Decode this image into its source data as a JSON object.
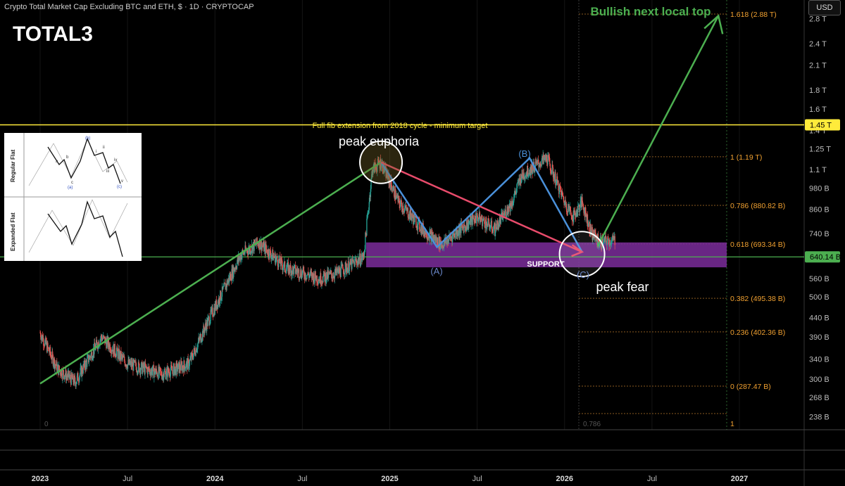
{
  "header": {
    "title": "Crypto Total Market Cap Excluding BTC and ETH, $ · 1D · CRYPTOCAP",
    "ticker": "TOTAL3",
    "currency_button": "USD"
  },
  "colors": {
    "up": "#26a69a",
    "down": "#ef5350",
    "green_line": "#4caf50",
    "yellow_line": "#ffeb3b",
    "abc_line": "#4a90d9",
    "red_arrow": "#e84b6b",
    "support_box": "#7b2d9b",
    "fib_text": "#f0a030"
  },
  "inset": {
    "labels": [
      "Regular Flat",
      "Expanded Flat"
    ],
    "wave_labels": [
      "(b)",
      "a",
      "b",
      "c",
      "(a)",
      "(c)",
      "i",
      "ii",
      "iii",
      "iv",
      "v"
    ]
  },
  "annotations": {
    "bullish": "Bullish next local top",
    "euphoria": "peak euphoria",
    "fear": "peak fear",
    "support": "SUPPORT",
    "fib_note": "Full fib extension from 2018 cycle - minimum target",
    "wave_a": "(A)",
    "wave_b": "(B)",
    "wave_c": "(C)",
    "zero_label": "0",
    "fib_small": "0.786"
  },
  "chart_data": {
    "type": "line",
    "title": "Crypto Total Market Cap Excluding BTC and ETH, $ · 1D · CRYPTOCAP",
    "x_ticks": [
      "2023",
      "Jul",
      "2024",
      "Jul",
      "2025",
      "Jul",
      "2026",
      "Jul",
      "2027"
    ],
    "y_scale": "log",
    "y_ticks": [
      "2.8 T",
      "2.4 T",
      "2.1 T",
      "1.8 T",
      "1.6 T",
      "1.4 T",
      "1.25 T",
      "1.1 T",
      "980 B",
      "860 B",
      "740 B",
      "560 B",
      "500 B",
      "440 B",
      "390 B",
      "340 B",
      "300 B",
      "268 B",
      "238 B"
    ],
    "price_labels": [
      {
        "text": "1.45 T",
        "value": 1450
      },
      {
        "text": "640.14 B",
        "value": 640.14
      }
    ],
    "fib_levels": [
      {
        "label": "1.618 (2.88 T)",
        "value": 2880
      },
      {
        "label": "1 (1.19 T)",
        "value": 1190
      },
      {
        "label": "0.786 (880.82 B)",
        "value": 880.82
      },
      {
        "label": "0.618 (693.34 B)",
        "value": 693.34
      },
      {
        "label": "0.382 (495.38 B)",
        "value": 495.38
      },
      {
        "label": "0.236 (402.36 B)",
        "value": 402.36
      },
      {
        "label": "0 (287.47 B)",
        "value": 287.47
      }
    ],
    "fib_bottom_label": "1",
    "series": [
      {
        "points": [
          [
            2023.0,
            400
          ],
          [
            2023.1,
            320
          ],
          [
            2023.2,
            295
          ],
          [
            2023.35,
            390
          ],
          [
            2023.5,
            330
          ],
          [
            2023.7,
            310
          ],
          [
            2023.85,
            330
          ],
          [
            2023.95,
            420
          ],
          [
            2024.15,
            650
          ],
          [
            2024.25,
            700
          ],
          [
            2024.4,
            600
          ],
          [
            2024.6,
            560
          ],
          [
            2024.7,
            580
          ],
          [
            2024.85,
            640
          ],
          [
            2024.9,
            1100
          ],
          [
            2024.95,
            1150
          ],
          [
            2025.05,
            900
          ],
          [
            2025.2,
            750
          ],
          [
            2025.3,
            690
          ],
          [
            2025.4,
            760
          ],
          [
            2025.5,
            820
          ],
          [
            2025.6,
            760
          ],
          [
            2025.7,
            900
          ],
          [
            2025.75,
            1050
          ],
          [
            2025.8,
            1100
          ],
          [
            2025.9,
            1180
          ],
          [
            2026.0,
            900
          ],
          [
            2026.05,
            820
          ],
          [
            2026.1,
            900
          ],
          [
            2026.15,
            750
          ],
          [
            2026.2,
            700
          ],
          [
            2026.3,
            710
          ]
        ]
      }
    ],
    "patterns": {
      "uptrend_from": {
        "x": 2023.0,
        "y": 292
      },
      "euphoria": {
        "x": 2024.95,
        "y": 1150
      },
      "wave_a": {
        "x": 2025.27,
        "y": 680
      },
      "wave_b": {
        "x": 2025.8,
        "y": 1180
      },
      "wave_c": {
        "x": 2026.1,
        "y": 660
      },
      "target": {
        "x": 2026.88,
        "y": 2850
      },
      "support": [
        600,
        700
      ]
    }
  }
}
